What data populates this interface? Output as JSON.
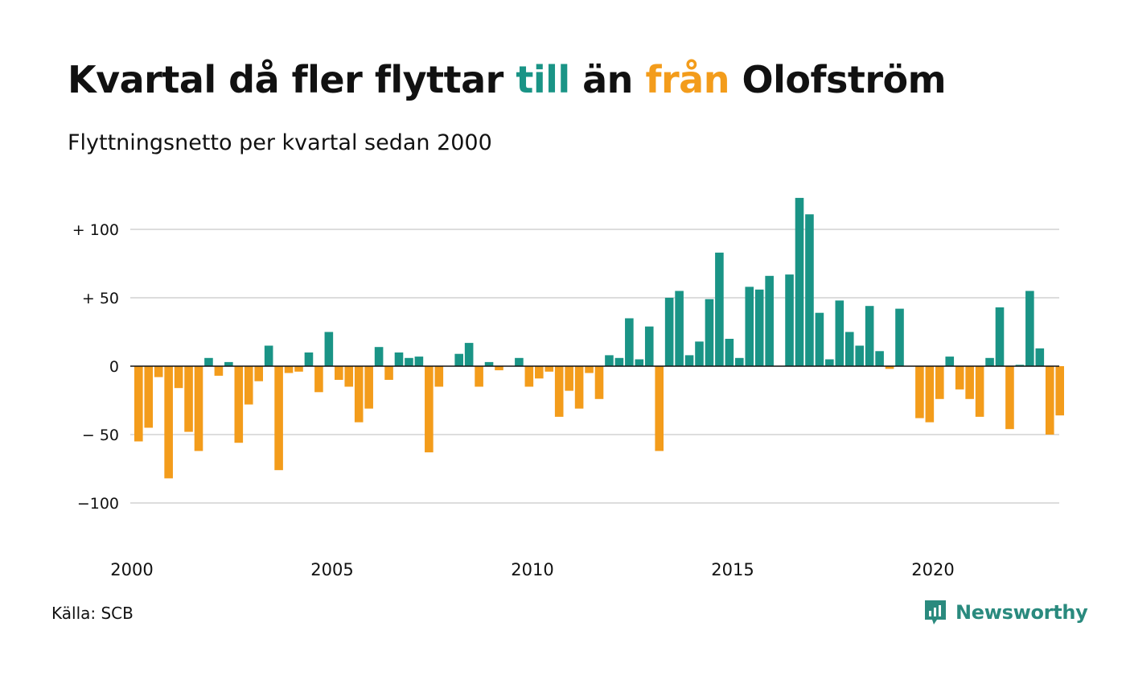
{
  "title": {
    "part1": "Kvartal då fler flyttar ",
    "pos_word": "till",
    "part2": " än ",
    "neg_word": "från",
    "part3": " Olofström"
  },
  "subtitle": "Flyttningsnetto per kvartal sedan 2000",
  "source": "Källa: SCB",
  "brand": {
    "name": "Newsworthy",
    "icon": "newsworthy-logo-icon"
  },
  "colors": {
    "positive": "#1a9486",
    "negative": "#f39c1b",
    "grid": "#dddddd",
    "zero": "#111111"
  },
  "chart_data": {
    "type": "bar",
    "title": "Kvartal då fler flyttar till än från Olofström",
    "subtitle": "Flyttningsnetto per kvartal sedan 2000",
    "x_start_year": 2000,
    "periods_per_year": 4,
    "xticks": [
      2000,
      2005,
      2010,
      2015,
      2020
    ],
    "xtick_labels": [
      "2000",
      "2005",
      "2010",
      "2015",
      "2020"
    ],
    "yticks": [
      100,
      50,
      0,
      -50,
      -100
    ],
    "ytick_labels": [
      "+ 100",
      "+  50",
      "0",
      "− 50",
      "−100"
    ],
    "ylim": [
      -135,
      125
    ],
    "grid": true,
    "values": [
      -55,
      -45,
      -8,
      -82,
      -16,
      -48,
      -62,
      6,
      -7,
      3,
      -56,
      -28,
      -11,
      15,
      -76,
      -5,
      -4,
      10,
      -19,
      25,
      -10,
      -15,
      -41,
      -31,
      14,
      -10,
      10,
      6,
      7,
      -63,
      -15,
      0,
      9,
      17,
      -15,
      3,
      -3,
      0,
      6,
      -15,
      -9,
      -4,
      -37,
      -18,
      -31,
      -5,
      -24,
      8,
      6,
      35,
      5,
      29,
      -62,
      50,
      55,
      8,
      18,
      49,
      83,
      20,
      6,
      58,
      56,
      66,
      0,
      67,
      123,
      111,
      39,
      5,
      48,
      25,
      15,
      44,
      11,
      -2,
      42,
      0,
      -38,
      -41,
      -24,
      7,
      -17,
      -24,
      -37,
      6,
      43,
      -46,
      1,
      55,
      13,
      -50,
      -36
    ]
  }
}
